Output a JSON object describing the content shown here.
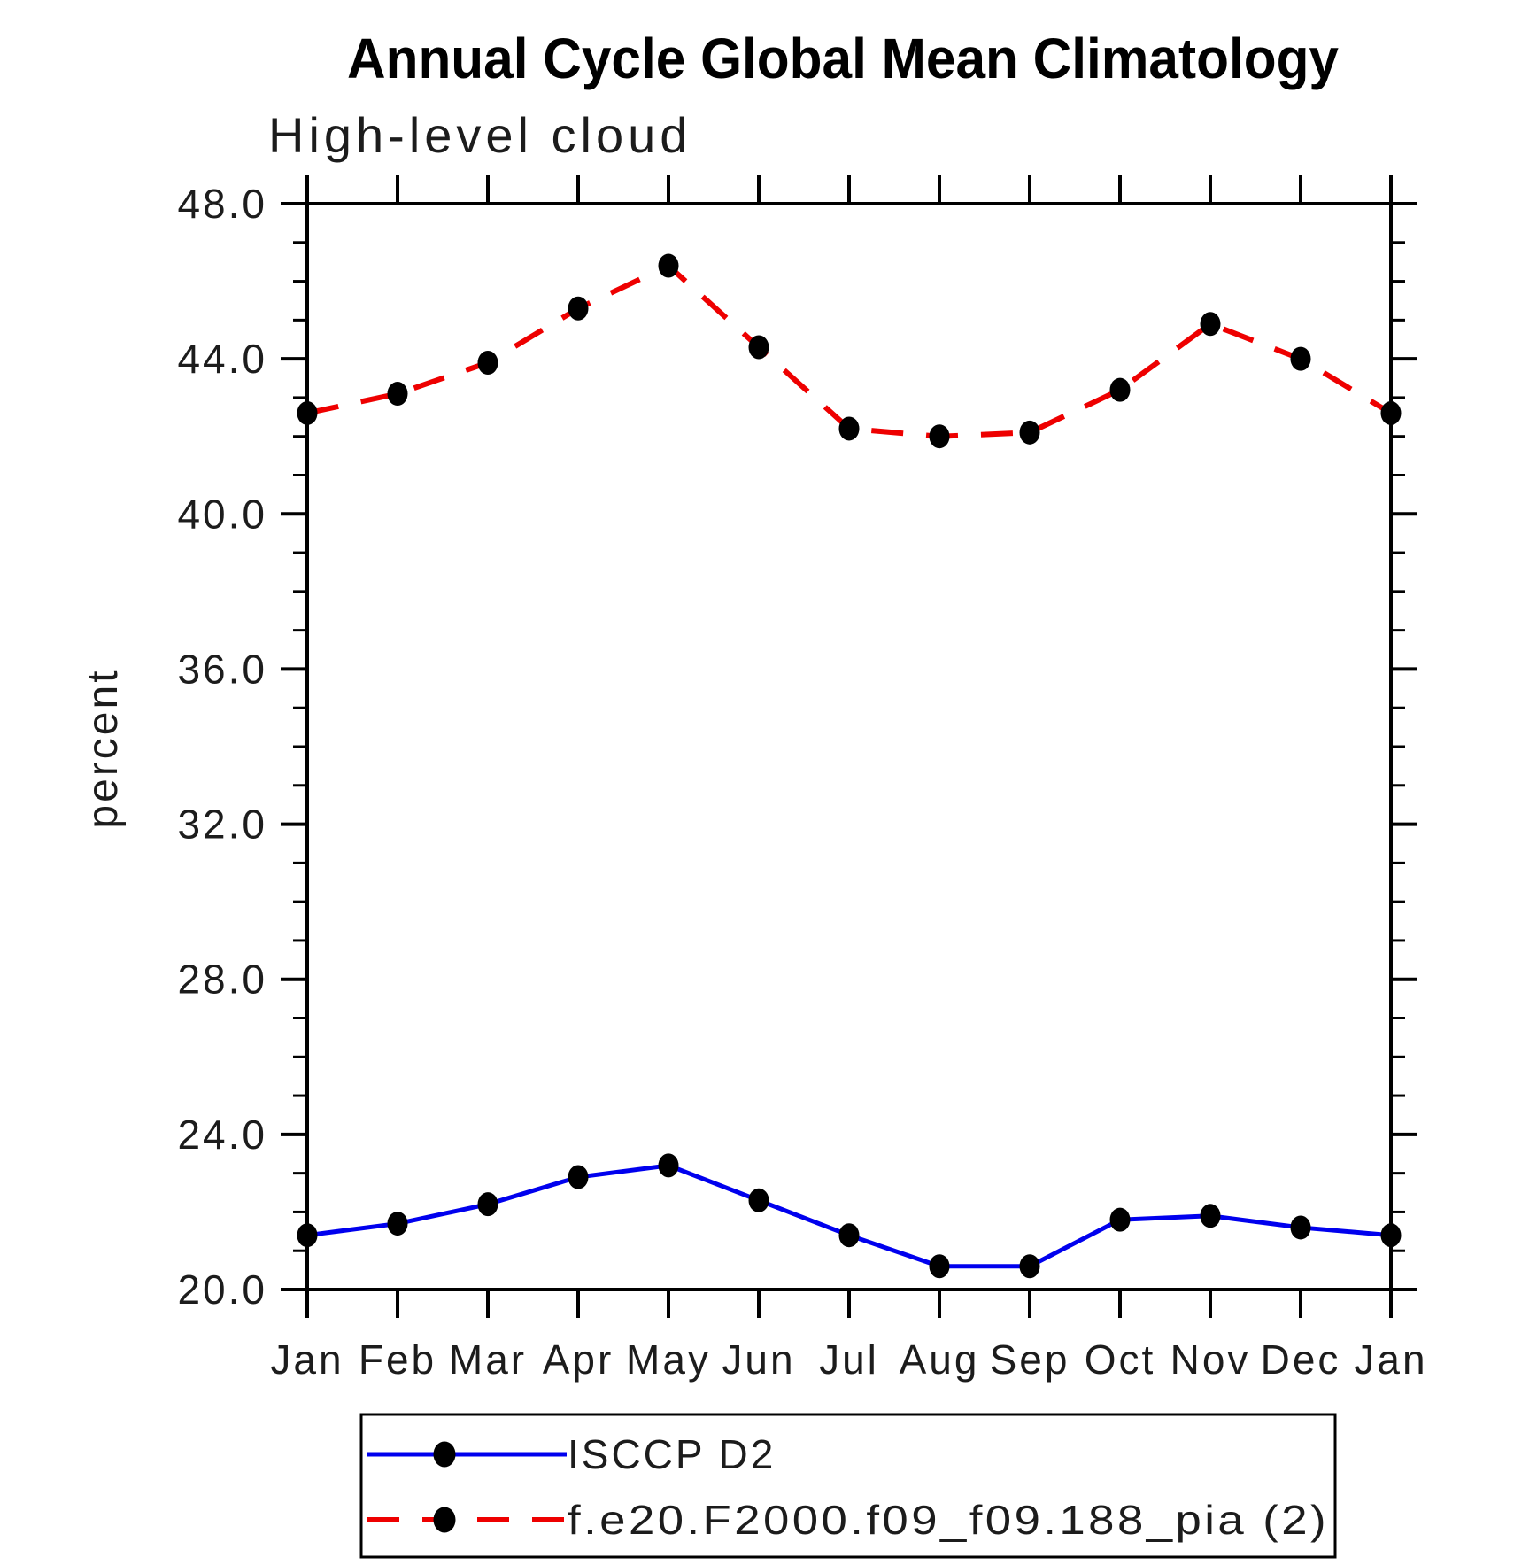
{
  "chart_data": {
    "type": "line",
    "title": "Annual Cycle Global Mean Climatology",
    "subtitle": "High-level cloud",
    "ylabel": "percent",
    "xlabel": "",
    "categories": [
      "Jan",
      "Feb",
      "Mar",
      "Apr",
      "May",
      "Jun",
      "Jul",
      "Aug",
      "Sep",
      "Oct",
      "Nov",
      "Dec",
      "Jan"
    ],
    "ylim": [
      20.0,
      48.0
    ],
    "ytick_major_interval": 4.0,
    "ytick_minor_interval": 1.0,
    "ytick_labels": [
      "20.0",
      "24.0",
      "28.0",
      "32.0",
      "36.0",
      "40.0",
      "44.0",
      "48.0"
    ],
    "grid": false,
    "legend_position": "bottom-left",
    "series": [
      {
        "name": "ISCCP D2",
        "color": "#0000ee",
        "line_style": "solid",
        "marker": "filled-circle",
        "marker_color": "#000000",
        "values": [
          21.4,
          21.7,
          22.2,
          22.9,
          23.2,
          22.3,
          21.4,
          20.6,
          20.6,
          21.8,
          21.9,
          21.6,
          21.4
        ]
      },
      {
        "name": "f.e20.F2000.f09_f09.188_pia (2)",
        "color": "#ee0000",
        "line_style": "dashed",
        "marker": "filled-circle",
        "marker_color": "#000000",
        "values": [
          42.6,
          43.1,
          43.9,
          45.3,
          46.4,
          44.3,
          42.2,
          42.0,
          42.1,
          43.2,
          44.9,
          44.0,
          42.6
        ]
      }
    ]
  }
}
